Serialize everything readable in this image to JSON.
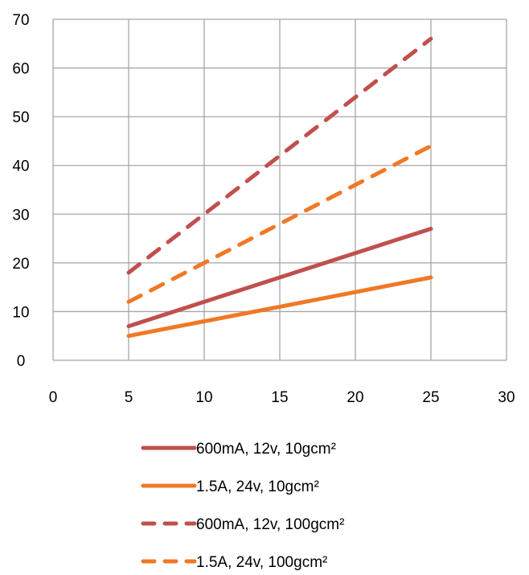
{
  "chart_data": {
    "type": "line",
    "title": "",
    "xlabel": "",
    "ylabel": "",
    "xlim": [
      0,
      30
    ],
    "ylim": [
      0,
      70
    ],
    "x_ticks": [
      "0",
      "5",
      "10",
      "15",
      "20",
      "25",
      "30"
    ],
    "y_ticks": [
      "0",
      "10",
      "20",
      "30",
      "40",
      "50",
      "60",
      "70"
    ],
    "grid": true,
    "legend_position": "bottom",
    "series": [
      {
        "name": "600mA, 12v, 10gcm²",
        "color": "#c0504d",
        "dash": "solid",
        "x": [
          5,
          10,
          15,
          20,
          25
        ],
        "y": [
          7,
          12,
          17,
          22,
          27
        ]
      },
      {
        "name": "1.5A, 24v, 10gcm²",
        "color": "#f07826",
        "dash": "solid",
        "x": [
          5,
          10,
          15,
          20,
          25
        ],
        "y": [
          5,
          8,
          11,
          14,
          17
        ]
      },
      {
        "name": "600mA, 12v, 100gcm²",
        "color": "#c0504d",
        "dash": "dashed",
        "x": [
          5,
          10,
          15,
          20,
          25
        ],
        "y": [
          18,
          30,
          42,
          54,
          66
        ]
      },
      {
        "name": "1.5A, 24v, 100gcm²",
        "color": "#f07826",
        "dash": "dashed",
        "x": [
          5,
          10,
          15,
          20,
          25
        ],
        "y": [
          12,
          20,
          28,
          36,
          44
        ]
      }
    ]
  }
}
